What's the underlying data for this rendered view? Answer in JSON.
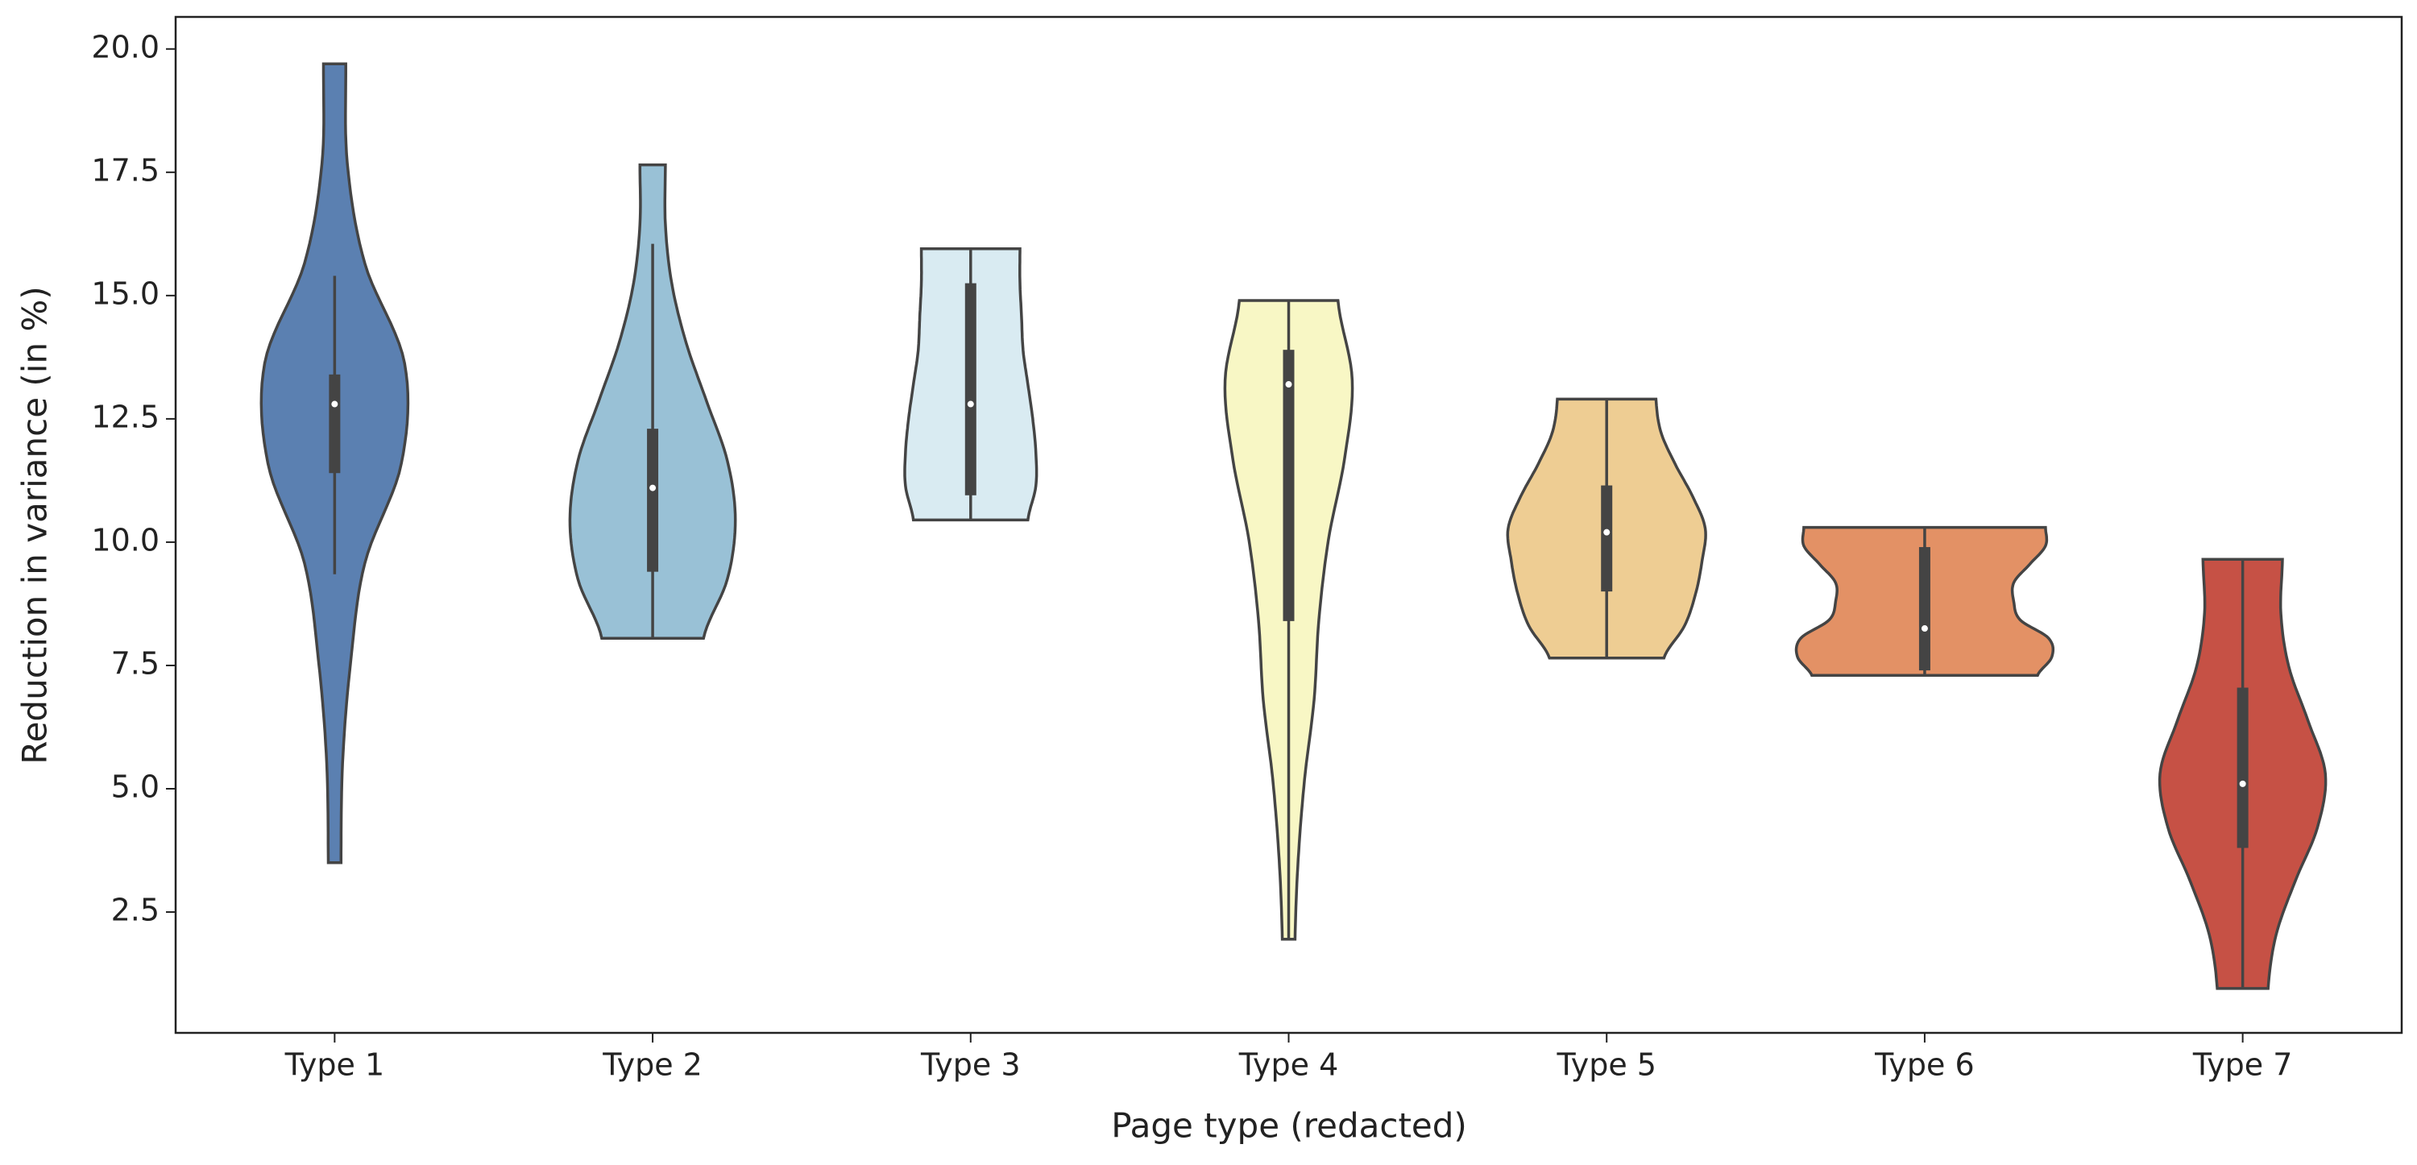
{
  "chart_data": {
    "type": "violin",
    "xlabel": "Page type (redacted)",
    "ylabel": "Reduction in variance (in %)",
    "categories": [
      "Type 1",
      "Type 2",
      "Type 3",
      "Type 4",
      "Type 5",
      "Type 6",
      "Type 7"
    ],
    "violins": [
      {
        "color": "#5b80b1",
        "min": 3.5,
        "max": 19.7,
        "whisker_low": 9.35,
        "q1": 11.4,
        "median": 12.8,
        "q3": 13.4,
        "whisker_high": 15.4,
        "density": [
          0.04,
          0.05,
          0.1,
          0.19,
          0.42,
          0.44,
          0.19,
          0.08,
          0.07
        ]
      },
      {
        "color": "#99c1d6",
        "min": 8.05,
        "max": 17.65,
        "whisker_low": 8.05,
        "q1": 9.4,
        "median": 11.1,
        "q3": 12.3,
        "whisker_high": 16.05,
        "density": [
          0.32,
          0.47,
          0.52,
          0.47,
          0.34,
          0.21,
          0.12,
          0.08,
          0.08
        ]
      },
      {
        "color": "#d9ebf2",
        "min": 10.45,
        "max": 15.95,
        "whisker_low": 10.45,
        "q1": 10.95,
        "median": 12.8,
        "q3": 15.25,
        "whisker_high": 15.95,
        "density": [
          0.36,
          0.41,
          0.41,
          0.39,
          0.36,
          0.33,
          0.32,
          0.31,
          0.31
        ]
      },
      {
        "color": "#f8f7c5",
        "min": 1.95,
        "max": 14.9,
        "whisker_low": 1.95,
        "q1": 8.4,
        "median": 13.2,
        "q3": 13.9,
        "whisker_high": 14.9,
        "density": [
          0.04,
          0.06,
          0.1,
          0.16,
          0.19,
          0.25,
          0.35,
          0.4,
          0.31
        ]
      },
      {
        "color": "#eecd93",
        "min": 7.65,
        "max": 12.9,
        "whisker_low": 7.65,
        "q1": 9.0,
        "median": 10.2,
        "q3": 11.15,
        "whisker_high": 12.9,
        "density": [
          0.36,
          0.49,
          0.56,
          0.6,
          0.62,
          0.54,
          0.43,
          0.34,
          0.31
        ]
      },
      {
        "color": "#e39165",
        "min": 7.3,
        "max": 10.3,
        "whisker_low": 7.3,
        "q1": 7.4,
        "median": 8.25,
        "q3": 9.9,
        "whisker_high": 10.3,
        "density": [
          0.71,
          0.8,
          0.78,
          0.6,
          0.56,
          0.56,
          0.66,
          0.76,
          0.76
        ]
      },
      {
        "color": "#c65145",
        "min": 0.95,
        "max": 9.65,
        "whisker_low": 0.95,
        "q1": 3.8,
        "median": 5.1,
        "q3": 7.05,
        "whisker_high": 9.65,
        "density": [
          0.16,
          0.21,
          0.33,
          0.47,
          0.52,
          0.41,
          0.29,
          0.24,
          0.25
        ]
      }
    ],
    "ylim": [
      0.05,
      20.65
    ],
    "yticks": [
      2.5,
      {
        "value": 5,
        "label": "5.0"
      },
      7.5,
      {
        "value": 10,
        "label": "10.0"
      },
      12.5,
      {
        "value": 15,
        "label": "15.0"
      },
      17.5,
      {
        "value": 20,
        "label": "20.0"
      }
    ]
  }
}
